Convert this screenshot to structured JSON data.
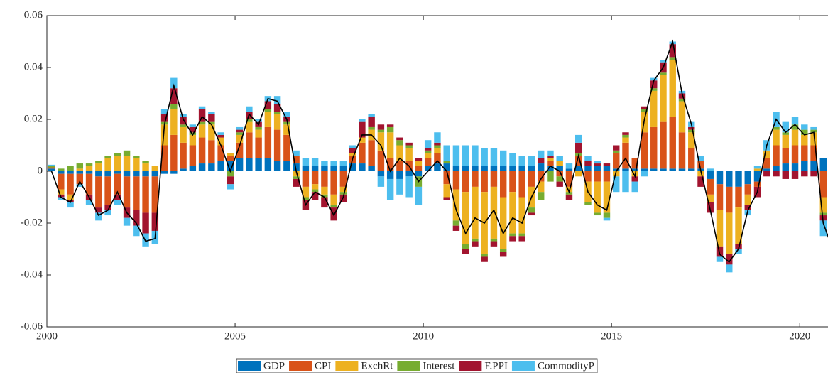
{
  "chart_data": {
    "type": "stacked_bar_line",
    "x": [
      2000,
      2000.25,
      2000.5,
      2000.75,
      2001,
      2001.25,
      2001.5,
      2001.75,
      2002,
      2002.25,
      2002.5,
      2002.75,
      2003,
      2003.25,
      2003.5,
      2003.75,
      2004,
      2004.25,
      2004.5,
      2004.75,
      2005,
      2005.25,
      2005.5,
      2005.75,
      2006,
      2006.25,
      2006.5,
      2006.75,
      2007,
      2007.25,
      2007.5,
      2007.75,
      2008,
      2008.25,
      2008.5,
      2008.75,
      2009,
      2009.25,
      2009.5,
      2009.75,
      2010,
      2010.25,
      2010.5,
      2010.75,
      2011,
      2011.25,
      2011.5,
      2011.75,
      2012,
      2012.25,
      2012.5,
      2012.75,
      2013,
      2013.25,
      2013.5,
      2013.75,
      2014,
      2014.25,
      2014.5,
      2014.75,
      2015,
      2015.25,
      2015.5,
      2015.75,
      2016,
      2016.25,
      2016.5,
      2016.75,
      2017,
      2017.25,
      2017.5,
      2017.75,
      2018,
      2018.25,
      2018.5,
      2018.75,
      2019,
      2019.25,
      2019.5,
      2019.75,
      2020,
      2020.25,
      2020.5,
      2020.75
    ],
    "series": [
      {
        "name": "GDP",
        "color": "#0072bd",
        "values": [
          0.001,
          -0.001,
          -0.001,
          -0.001,
          -0.001,
          -0.002,
          -0.002,
          -0.001,
          -0.002,
          -0.002,
          -0.002,
          -0.002,
          -0.001,
          -0.001,
          0.001,
          0.002,
          0.003,
          0.003,
          0.004,
          0.004,
          0.005,
          0.005,
          0.005,
          0.005,
          0.004,
          0.004,
          0.003,
          0.002,
          0.002,
          0.002,
          0.002,
          0.002,
          0.003,
          0.003,
          0.002,
          -0.002,
          -0.003,
          -0.003,
          -0.002,
          -0.002,
          0.002,
          0.003,
          0.003,
          0.002,
          0.002,
          0.002,
          0.002,
          0.002,
          0.002,
          0.002,
          0.002,
          0.002,
          0.003,
          0.002,
          0.002,
          0.001,
          0.002,
          0.002,
          0.002,
          0.002,
          0.001,
          0.001,
          0.001,
          0.001,
          0.001,
          0.001,
          0.001,
          0.001,
          0.001,
          0.001,
          -0.003,
          -0.005,
          -0.006,
          -0.006,
          -0.005,
          -0.004,
          0.001,
          0.002,
          0.003,
          0.003,
          0.004,
          0.004,
          0.005,
          0.005
        ]
      },
      {
        "name": "CPI",
        "color": "#d95319",
        "values": [
          0.0005,
          -0.006,
          -0.008,
          -0.004,
          -0.008,
          -0.012,
          -0.011,
          -0.008,
          -0.012,
          -0.013,
          -0.014,
          -0.014,
          0.01,
          0.014,
          0.01,
          0.008,
          0.01,
          0.009,
          0.006,
          0.002,
          0.006,
          0.01,
          0.008,
          0.012,
          0.012,
          0.01,
          0.003,
          -0.006,
          -0.005,
          -0.006,
          -0.009,
          -0.006,
          0.003,
          0.008,
          0.01,
          0.008,
          0.005,
          0.004,
          0.004,
          0.002,
          0.003,
          0.004,
          -0.005,
          -0.007,
          -0.008,
          -0.006,
          -0.008,
          -0.006,
          -0.01,
          -0.008,
          -0.01,
          -0.006,
          -0.004,
          0.002,
          -0.002,
          -0.006,
          0.004,
          -0.004,
          -0.004,
          -0.004,
          0.006,
          0.01,
          0.004,
          0.014,
          0.016,
          0.018,
          0.02,
          0.014,
          0.008,
          0.003,
          -0.006,
          -0.01,
          -0.01,
          -0.008,
          -0.004,
          -0.002,
          0.004,
          0.008,
          0.006,
          0.007,
          0.006,
          0.006,
          -0.01,
          -0.012
        ]
      },
      {
        "name": "ExchRt",
        "color": "#edb120",
        "values": [
          0,
          -0.002,
          -0.002,
          0.001,
          0.002,
          0.003,
          0.005,
          0.006,
          0.006,
          0.005,
          0.003,
          0.002,
          0.008,
          0.01,
          0.006,
          0.004,
          0.005,
          0.006,
          0.003,
          0.001,
          0.003,
          0.004,
          0.003,
          0.006,
          0.006,
          0.004,
          -0.002,
          -0.004,
          -0.002,
          -0.003,
          -0.004,
          -0.002,
          0.001,
          0.002,
          0.004,
          0.007,
          0.01,
          0.006,
          0.005,
          0.002,
          0.002,
          0.002,
          -0.005,
          -0.012,
          -0.02,
          -0.02,
          -0.024,
          -0.02,
          -0.02,
          -0.016,
          -0.014,
          -0.008,
          -0.004,
          0.001,
          0.002,
          -0.002,
          -0.002,
          -0.008,
          -0.012,
          -0.012,
          -0.002,
          0.002,
          -0.002,
          0.008,
          0.014,
          0.018,
          0.022,
          0.012,
          0.006,
          -0.002,
          -0.003,
          -0.014,
          -0.016,
          -0.014,
          -0.004,
          0.001,
          0.003,
          0.006,
          0.005,
          0.006,
          0.004,
          0.005,
          -0.006,
          -0.01
        ]
      },
      {
        "name": "Interest",
        "color": "#77ac30",
        "values": [
          0.0005,
          0.001,
          0.002,
          0.002,
          0.001,
          0.001,
          0.001,
          0.001,
          0.002,
          0.001,
          0.001,
          0,
          0.001,
          0.002,
          0.001,
          0.001,
          0.001,
          0.001,
          0,
          -0.002,
          0.001,
          0.001,
          0.001,
          0.001,
          0.001,
          0.001,
          -0.001,
          -0.001,
          -0.001,
          -0.001,
          -0.001,
          -0.001,
          0,
          0,
          0.001,
          0.001,
          0.002,
          0.002,
          0.001,
          -0.004,
          0.001,
          0.001,
          0.001,
          -0.002,
          -0.002,
          -0.001,
          -0.001,
          -0.001,
          -0.001,
          -0.001,
          -0.001,
          -0.002,
          -0.003,
          -0.004,
          -0.002,
          -0.001,
          0.001,
          -0.001,
          -0.001,
          -0.002,
          0.001,
          0.001,
          0,
          0.001,
          0.001,
          0.001,
          0.001,
          0.001,
          0.001,
          0,
          0,
          0,
          0,
          0,
          0,
          0,
          0,
          0.001,
          0.001,
          0.002,
          0.002,
          0.001,
          -0.001,
          -0.002
        ]
      },
      {
        "name": "F.PPI",
        "color": "#a2142f",
        "values": [
          0,
          -0.001,
          -0.001,
          0,
          -0.002,
          -0.002,
          -0.002,
          -0.002,
          -0.004,
          -0.006,
          -0.008,
          -0.007,
          0.003,
          0.006,
          0.003,
          0.002,
          0.005,
          0.003,
          0.001,
          -0.003,
          0.001,
          0.003,
          0.002,
          0.003,
          0.003,
          0.002,
          -0.003,
          -0.004,
          -0.003,
          -0.004,
          -0.005,
          -0.003,
          0.002,
          0.006,
          0.004,
          0.002,
          0.001,
          0.001,
          0.001,
          0.001,
          0.001,
          0.001,
          -0.001,
          -0.002,
          -0.002,
          -0.002,
          -0.002,
          -0.002,
          -0.002,
          -0.002,
          -0.002,
          -0.001,
          0.002,
          0.001,
          -0.002,
          -0.002,
          0.004,
          0.002,
          0.001,
          0.001,
          0.002,
          0.001,
          -0.002,
          0.001,
          0.003,
          0.004,
          0.005,
          0.002,
          0.001,
          -0.004,
          -0.004,
          -0.004,
          -0.004,
          -0.002,
          -0.002,
          -0.004,
          -0.002,
          -0.002,
          -0.003,
          -0.003,
          -0.002,
          -0.002,
          -0.002,
          -0.003
        ]
      },
      {
        "name": "CommodityP",
        "color": "#4dbeee",
        "values": [
          0.0005,
          -0.001,
          -0.002,
          -0.001,
          -0.002,
          -0.003,
          -0.002,
          -0.002,
          -0.003,
          -0.004,
          -0.005,
          -0.005,
          0.002,
          0.004,
          0.001,
          0.001,
          0.001,
          0.001,
          0.001,
          -0.002,
          0.001,
          0.002,
          0.001,
          0.002,
          0.003,
          0.002,
          0.002,
          0.003,
          0.003,
          0.002,
          0.002,
          0.002,
          0.001,
          0.001,
          0.001,
          -0.004,
          -0.008,
          -0.006,
          -0.008,
          -0.007,
          0.003,
          0.004,
          0.006,
          0.008,
          0.008,
          0.008,
          0.007,
          0.007,
          0.006,
          0.005,
          0.004,
          0.004,
          0.003,
          0.002,
          0.002,
          0.002,
          0.003,
          0.002,
          0.001,
          -0.001,
          -0.006,
          -0.008,
          -0.004,
          -0.002,
          0.001,
          0.001,
          0.001,
          0.001,
          0.002,
          0.002,
          0.001,
          -0.002,
          -0.003,
          -0.002,
          -0.002,
          0.001,
          0.004,
          0.006,
          0.004,
          0.003,
          0.002,
          0.001,
          -0.006,
          -0.008
        ]
      }
    ],
    "line_color": "#000000",
    "line_values": [
      0,
      -0.01,
      -0.012,
      -0.004,
      -0.01,
      -0.017,
      -0.015,
      -0.008,
      -0.016,
      -0.02,
      -0.027,
      -0.026,
      0.018,
      0.033,
      0.02,
      0.014,
      0.021,
      0.018,
      0.01,
      0,
      0.01,
      0.022,
      0.018,
      0.028,
      0.027,
      0.02,
      0,
      -0.013,
      -0.008,
      -0.01,
      -0.017,
      -0.01,
      0.005,
      0.014,
      0.014,
      0.01,
      0,
      0.005,
      0.002,
      -0.004,
      0,
      0.004,
      0,
      -0.015,
      -0.024,
      -0.018,
      -0.02,
      -0.015,
      -0.024,
      -0.018,
      -0.02,
      -0.01,
      -0.003,
      0.002,
      0,
      -0.008,
      0.006,
      -0.008,
      -0.013,
      -0.015,
      0,
      0.005,
      -0.002,
      0.02,
      0.035,
      0.04,
      0.05,
      0.03,
      0.018,
      0,
      -0.015,
      -0.032,
      -0.035,
      -0.03,
      -0.015,
      -0.008,
      0.01,
      0.02,
      0.015,
      0.018,
      0.014,
      0.015,
      -0.02,
      -0.03
    ],
    "xlim": [
      2000,
      2020.75
    ],
    "xticks": [
      2000,
      2005,
      2010,
      2015,
      2020
    ],
    "ylim": [
      -0.06,
      0.06
    ],
    "yticks": [
      -0.06,
      -0.04,
      -0.02,
      0,
      0.02,
      0.04,
      0.06
    ],
    "legend": "bottom"
  }
}
